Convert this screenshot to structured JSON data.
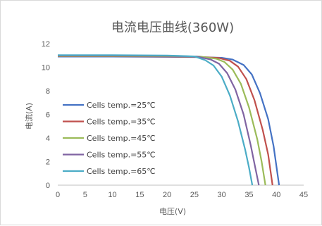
{
  "chart_data": {
    "type": "line",
    "title": "电流电压曲线(360W)",
    "xlabel": "电压(V)",
    "ylabel": "电流(A)",
    "xlim": [
      0,
      45
    ],
    "ylim": [
      0,
      12
    ],
    "xticks": [
      0,
      5,
      10,
      15,
      20,
      25,
      30,
      35,
      40,
      45
    ],
    "yticks": [
      0,
      2,
      4,
      6,
      8,
      10,
      12
    ],
    "grid": false,
    "legend_position": "left",
    "series": [
      {
        "name": "Cells temp.=25℃",
        "color": "#4472c4",
        "points": [
          [
            0,
            10.9
          ],
          [
            10,
            10.9
          ],
          [
            20,
            10.88
          ],
          [
            26,
            10.86
          ],
          [
            30,
            10.8
          ],
          [
            32,
            10.65
          ],
          [
            34,
            10.2
          ],
          [
            35.5,
            9.4
          ],
          [
            37,
            7.8
          ],
          [
            38.5,
            5.6
          ],
          [
            39.5,
            3.3
          ],
          [
            40.5,
            0
          ]
        ]
      },
      {
        "name": "Cells temp.=35℃",
        "color": "#c0504d",
        "points": [
          [
            0,
            10.93
          ],
          [
            10,
            10.93
          ],
          [
            20,
            10.91
          ],
          [
            26,
            10.88
          ],
          [
            29.5,
            10.78
          ],
          [
            31.5,
            10.55
          ],
          [
            33,
            10.05
          ],
          [
            34.5,
            9.0
          ],
          [
            36,
            7.2
          ],
          [
            37.5,
            4.7
          ],
          [
            38.5,
            2.6
          ],
          [
            39.3,
            0
          ]
        ]
      },
      {
        "name": "Cells temp.=45℃",
        "color": "#9bbb59",
        "points": [
          [
            0,
            10.96
          ],
          [
            10,
            10.96
          ],
          [
            20,
            10.94
          ],
          [
            26,
            10.9
          ],
          [
            29,
            10.72
          ],
          [
            30.5,
            10.45
          ],
          [
            32,
            9.8
          ],
          [
            33.5,
            8.6
          ],
          [
            35,
            6.6
          ],
          [
            36.5,
            3.9
          ],
          [
            37.3,
            2.0
          ],
          [
            38,
            0
          ]
        ]
      },
      {
        "name": "Cells temp.=55℃",
        "color": "#8064a2",
        "points": [
          [
            0,
            10.99
          ],
          [
            10,
            10.99
          ],
          [
            20,
            10.97
          ],
          [
            25.5,
            10.9
          ],
          [
            28,
            10.65
          ],
          [
            29.5,
            10.3
          ],
          [
            31,
            9.5
          ],
          [
            32.5,
            8.1
          ],
          [
            34,
            6.0
          ],
          [
            35.3,
            3.4
          ],
          [
            36,
            1.8
          ],
          [
            36.8,
            0
          ]
        ]
      },
      {
        "name": "Cells temp.=65℃",
        "color": "#4bacc6",
        "points": [
          [
            0,
            11.02
          ],
          [
            10,
            11.02
          ],
          [
            20,
            11.0
          ],
          [
            25,
            10.92
          ],
          [
            27,
            10.6
          ],
          [
            28.5,
            10.15
          ],
          [
            30,
            9.2
          ],
          [
            31.5,
            7.6
          ],
          [
            33,
            5.4
          ],
          [
            34.3,
            3.0
          ],
          [
            35,
            1.5
          ],
          [
            35.6,
            0
          ]
        ]
      }
    ]
  }
}
